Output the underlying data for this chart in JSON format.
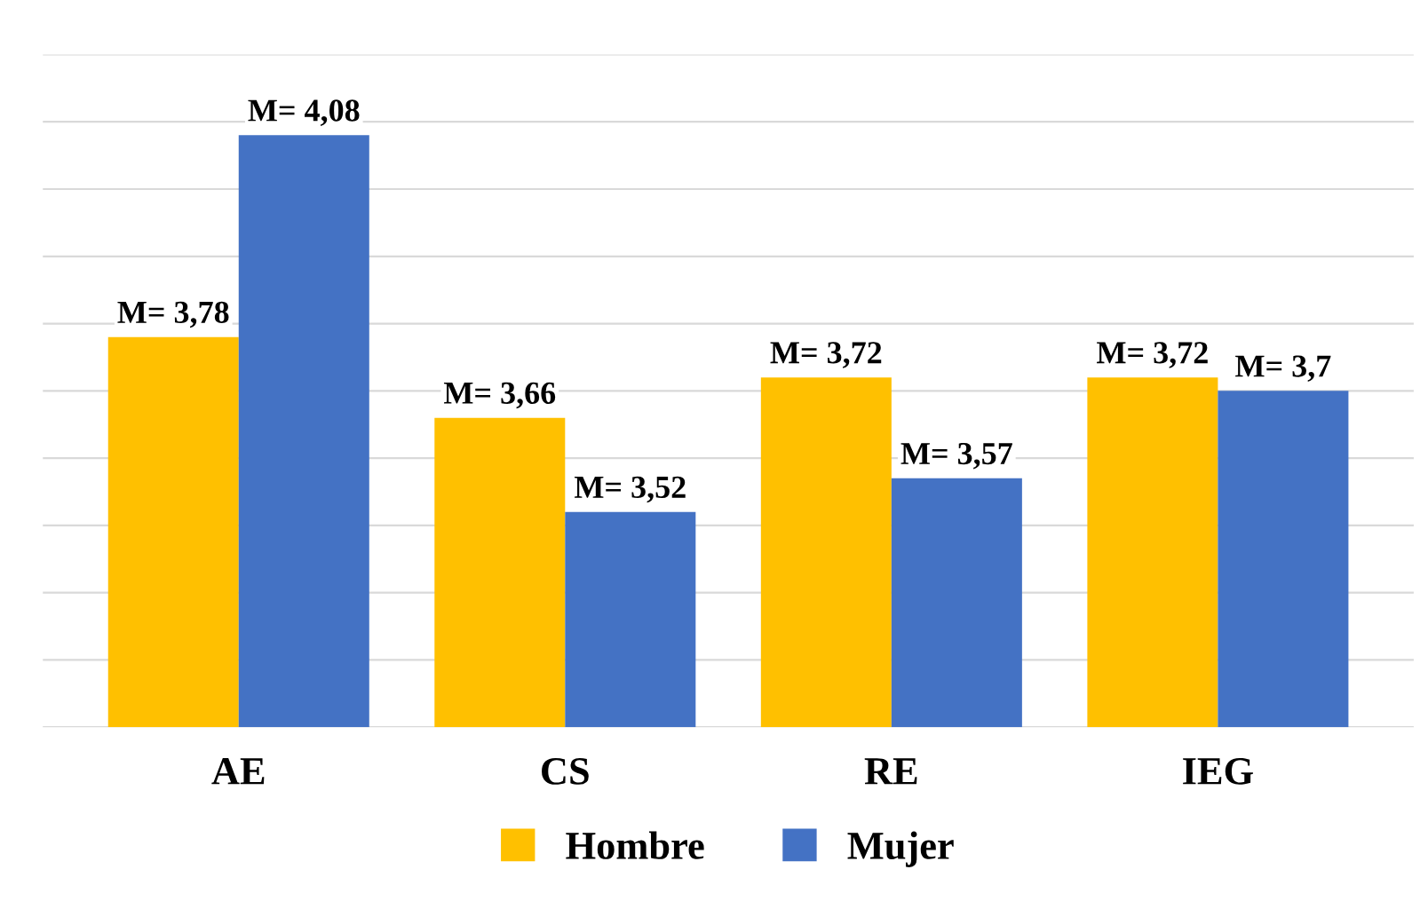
{
  "chart_data": {
    "type": "bar",
    "categories": [
      "AE",
      "CS",
      "RE",
      "IEG"
    ],
    "series": [
      {
        "name": "Hombre",
        "color": "#ffc000",
        "values": [
          3.78,
          3.66,
          3.72,
          3.72
        ],
        "value_labels": [
          "M= 3,78",
          "M= 3,66",
          "M= 3,72",
          "M= 3,72"
        ]
      },
      {
        "name": "Mujer",
        "color": "#4472c4",
        "values": [
          4.08,
          3.52,
          3.57,
          3.7
        ],
        "value_labels": [
          "M= 4,08",
          "M= 3,52",
          "M= 3,57",
          "M= 3,7"
        ]
      }
    ],
    "ylim": [
      3.2,
      4.2
    ],
    "yticks": [
      {
        "value": 3.2,
        "label": null
      },
      {
        "value": 3.3,
        "label": null
      },
      {
        "value": 3.4,
        "label": null
      },
      {
        "value": 3.5,
        "label": null
      },
      {
        "value": 3.6,
        "label": null
      },
      {
        "value": 3.7,
        "label": null
      },
      {
        "value": 3.8,
        "label": null
      },
      {
        "value": 3.9,
        "label": null
      },
      {
        "value": 4.0,
        "label": null
      },
      {
        "value": 4.1,
        "label": null
      },
      {
        "value": 4.2,
        "label": null
      }
    ],
    "grid": "y",
    "legend": "bottom",
    "tick_labels": "x"
  }
}
